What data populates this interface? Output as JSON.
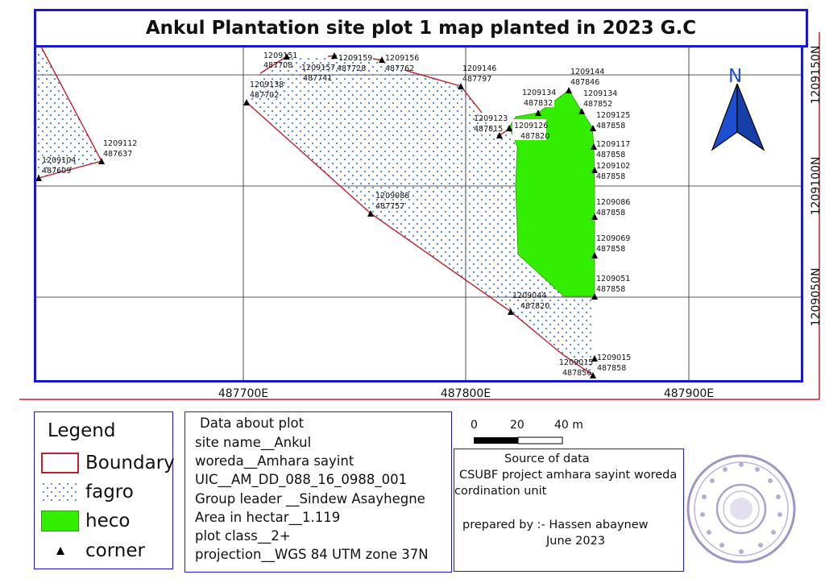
{
  "title": "Ankul Plantation site plot 1 map planted in 2023 G.C",
  "colors": {
    "frame": "#1a1acc",
    "boundary": "#c0202e",
    "heco": "#33ee00",
    "fagro_dot": "#4f7fc9",
    "north": "#1f4fd1"
  },
  "north_label": "N",
  "grid": {
    "easting_labels": [
      "487700E",
      "487800E",
      "487900E"
    ],
    "northing_labels": [
      "1209150N",
      "1209100N",
      "1209050N"
    ]
  },
  "plot_west": {
    "points": [
      {
        "label": [
          "1209112",
          "487637"
        ]
      },
      {
        "label": [
          "1209104",
          "487609"
        ]
      }
    ]
  },
  "plot_main": {
    "points": [
      {
        "label": [
          "1209151",
          "487708"
        ]
      },
      {
        "label": [
          "1209159",
          "487741"
        ]
      },
      {
        "label": [
          "1209157",
          "487728"
        ]
      },
      {
        "label": [
          "1209156",
          "487762"
        ]
      },
      {
        "label": [
          "1209146",
          "487797"
        ]
      },
      {
        "label": [
          "1209138",
          "487702"
        ]
      },
      {
        "label": [
          "1209123",
          "487815"
        ]
      },
      {
        "label": [
          "1209126",
          "487820"
        ]
      },
      {
        "label": [
          "1209134",
          "487832"
        ]
      },
      {
        "label": [
          "1209144",
          "487846"
        ]
      },
      {
        "label": [
          "1209134",
          "487852"
        ]
      },
      {
        "label": [
          "1209125",
          "487858"
        ]
      },
      {
        "label": [
          "1209117",
          "487858"
        ]
      },
      {
        "label": [
          "1209102",
          "487858"
        ]
      },
      {
        "label": [
          "1209088",
          "487757"
        ]
      },
      {
        "label": [
          "1209086",
          "487858"
        ]
      },
      {
        "label": [
          "1209069",
          "487858"
        ]
      },
      {
        "label": [
          "1209051",
          "487858"
        ]
      },
      {
        "label": [
          "1209044",
          "487820"
        ]
      },
      {
        "label": [
          "1209015",
          "487856"
        ]
      },
      {
        "label": [
          "1209015",
          "487858"
        ]
      }
    ]
  },
  "legend": {
    "title": "Legend",
    "items": [
      {
        "label": "Boundary",
        "kind": "boundary"
      },
      {
        "label": "fagro",
        "kind": "fagro"
      },
      {
        "label": "heco",
        "kind": "heco"
      },
      {
        "label": "corner",
        "kind": "corner"
      }
    ]
  },
  "plot_info": [
    "Data about plot",
    "site name__Ankul",
    "woreda__Amhara sayint",
    "UIC__AM_DD_088_16_0988_001",
    "Group leader __Sindew Asayhegne",
    "Area in hectar__1.119",
    "plot class__2+",
    "projection__WGS 84 UTM zone 37N"
  ],
  "scale_bar": {
    "labels": [
      "0",
      "20",
      "40 m"
    ]
  },
  "source": {
    "heading": "Source of data",
    "line1": "CSUBF project amhara sayint woreda",
    "line2": "cordination unit",
    "prepared": "prepared by :- Hassen abaynew",
    "date": "June 2023"
  }
}
